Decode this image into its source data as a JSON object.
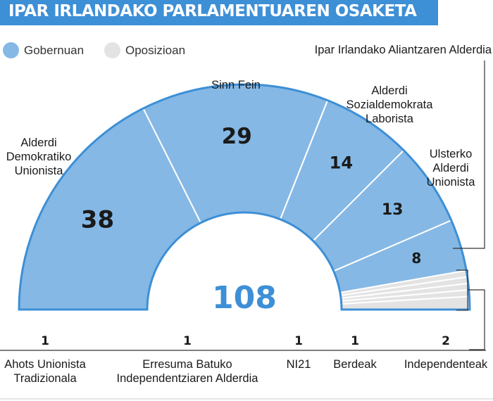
{
  "title": "IPAR IRLANDAKO PARLAMENTUAREN OSAKETA",
  "legend": [
    {
      "label": "Gobernuan",
      "color": "#85b8e5"
    },
    {
      "label": "Oposizioan",
      "color": "#e3e3e3"
    }
  ],
  "colors": {
    "accent": "#3d8fd6",
    "government": "#85b8e5",
    "opposition": "#e3e3e3",
    "total": "#3d8fd6"
  },
  "chart_data": {
    "type": "pie",
    "variant": "semicircle-parliament",
    "total_seats": 108,
    "total_label": "108",
    "parties": [
      {
        "name": "Alderdi Demokratiko Unionista",
        "seats": 38,
        "group": "government"
      },
      {
        "name": "Sinn Fein",
        "seats": 29,
        "group": "government"
      },
      {
        "name": "Alderdi Sozialdemokrata Laborista",
        "seats": 14,
        "group": "government"
      },
      {
        "name": "Ulsterko Alderdi Unionista",
        "seats": 13,
        "group": "government"
      },
      {
        "name": "Ipar Irlandako Aliantzaren Alderdia",
        "seats": 8,
        "group": "government"
      },
      {
        "name": "Ahots Unionista Tradizionala",
        "seats": 1,
        "group": "opposition"
      },
      {
        "name": "Erresuma Batuko Independentziaren Alderdia",
        "seats": 1,
        "group": "opposition"
      },
      {
        "name": "NI21",
        "seats": 1,
        "group": "opposition"
      },
      {
        "name": "Berdeak",
        "seats": 1,
        "group": "opposition"
      },
      {
        "name": "Independenteak",
        "seats": 2,
        "group": "opposition"
      }
    ]
  }
}
